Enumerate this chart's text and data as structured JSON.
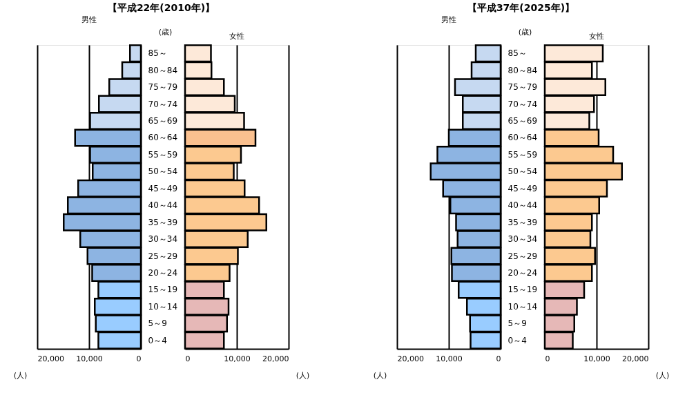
{
  "chart_data": [
    {
      "type": "bar",
      "orientation": "horizontal",
      "title": "【平成22年(2010年)】",
      "ylabel": "(歳)",
      "xlabel": "(人)",
      "categories": [
        "85～",
        "80～84",
        "75～79",
        "70～74",
        "65～69",
        "60～64",
        "55～59",
        "50～54",
        "45～49",
        "40～44",
        "35～39",
        "30～34",
        "25～29",
        "20～24",
        "15～19",
        "10～14",
        "5～9",
        "0～4"
      ],
      "xlim": [
        20000,
        0
      ],
      "xticks": [
        {
          "value": 20000,
          "label": "20,000"
        },
        {
          "value": 10000,
          "label": "10,000"
        },
        0
      ],
      "grid": "x",
      "series": [
        {
          "name": "男性",
          "colors": [
            "#c6d9f1",
            "#c6d9f1",
            "#c6d9f1",
            "#c6d9f1",
            "#c6d9f1",
            "#8db4e2",
            "#8db4e2",
            "#8db4e2",
            "#8db4e2",
            "#8db4e2",
            "#8db4e2",
            "#8db4e2",
            "#8db4e2",
            "#8db4e2",
            "#99ccff",
            "#99ccff",
            "#99ccff",
            "#99ccff"
          ],
          "values": [
            2100,
            3600,
            6100,
            8100,
            9800,
            12700,
            9800,
            9300,
            12100,
            14100,
            14900,
            11700,
            10300,
            9400,
            8200,
            8900,
            8700,
            8200
          ]
        }
      ]
    },
    {
      "type": "bar",
      "orientation": "horizontal",
      "xlabel": "(人)",
      "categories": [
        null,
        null,
        null,
        null,
        null,
        null,
        null,
        null,
        null,
        null,
        null,
        null,
        null,
        null,
        null,
        null,
        null,
        null
      ],
      "xlim": [
        0,
        20000
      ],
      "xticks": [
        0,
        {
          "value": 10000,
          "label": "10,000"
        },
        {
          "value": 20000,
          "label": "20,000"
        }
      ],
      "grid": "x",
      "tick_labels": "x",
      "series": [
        {
          "name": "女性",
          "colors": [
            "#fde9d9",
            "#fde9d9",
            "#fde9d9",
            "#fde9d9",
            "#fde9d9",
            "#fac08f",
            "#fcc990",
            "#fcc990",
            "#fcc990",
            "#fcc990",
            "#fcc990",
            "#fcc990",
            "#fcc990",
            "#fcc990",
            "#e6b8b7",
            "#e6b8b7",
            "#e6b8b7",
            "#e6b8b7"
          ],
          "values": [
            5000,
            5100,
            7500,
            9600,
            11400,
            13600,
            10800,
            9400,
            11500,
            14300,
            15700,
            12100,
            10200,
            8600,
            7500,
            8400,
            8100,
            7500
          ]
        }
      ]
    },
    {
      "type": "bar",
      "orientation": "horizontal",
      "title": "【平成37年(2025年)】",
      "ylabel": "(歳)",
      "xlabel": "(人)",
      "categories": [
        "85～",
        "80～84",
        "75～79",
        "70～74",
        "65～69",
        "60～64",
        "55～59",
        "50～54",
        "45～49",
        "40～44",
        "35～39",
        "30～34",
        "25～29",
        "20～24",
        "15～19",
        "10～14",
        "5～9",
        "0～4"
      ],
      "xlim": [
        20000,
        0
      ],
      "xticks": [
        {
          "value": 20000,
          "label": "20,000"
        },
        {
          "value": 10000,
          "label": "10,000"
        },
        0
      ],
      "grid": "x",
      "series": [
        {
          "name": "男性",
          "colors": [
            "#c6d9f1",
            "#c6d9f1",
            "#c6d9f1",
            "#c6d9f1",
            "#c6d9f1",
            "#8db4e2",
            "#8db4e2",
            "#8db4e2",
            "#8db4e2",
            "#8db4e2",
            "#8db4e2",
            "#8db4e2",
            "#8db4e2",
            "#8db4e2",
            "#99ccff",
            "#99ccff",
            "#99ccff",
            "#99ccff"
          ],
          "values": [
            4800,
            5600,
            8800,
            7300,
            7300,
            10000,
            12200,
            13500,
            11100,
            9700,
            8600,
            8300,
            9500,
            9400,
            8100,
            6500,
            5900,
            5800
          ]
        }
      ]
    },
    {
      "type": "bar",
      "orientation": "horizontal",
      "xlabel": "(人)",
      "categories": [
        null,
        null,
        null,
        null,
        null,
        null,
        null,
        null,
        null,
        null,
        null,
        null,
        null,
        null,
        null,
        null,
        null,
        null
      ],
      "xlim": [
        0,
        20000
      ],
      "xticks": [
        0,
        {
          "value": 10000,
          "label": "10,000"
        },
        {
          "value": 20000,
          "label": "20,000"
        }
      ],
      "grid": "x",
      "tick_labels": "x",
      "series": [
        {
          "name": "女性",
          "colors": [
            "#fde9d9",
            "#fde9d9",
            "#fde9d9",
            "#fde9d9",
            "#fde9d9",
            "#fcc990",
            "#fcc990",
            "#fcc990",
            "#fcc990",
            "#fcc990",
            "#fcc990",
            "#fcc990",
            "#fcc990",
            "#fcc990",
            "#e6b8b7",
            "#e6b8b7",
            "#e6b8b7",
            "#e6b8b7"
          ],
          "values": [
            11200,
            9100,
            11700,
            9500,
            8600,
            10400,
            13200,
            14900,
            12000,
            10500,
            9100,
            8800,
            9700,
            9100,
            7600,
            6200,
            5700,
            5400
          ]
        }
      ]
    }
  ]
}
